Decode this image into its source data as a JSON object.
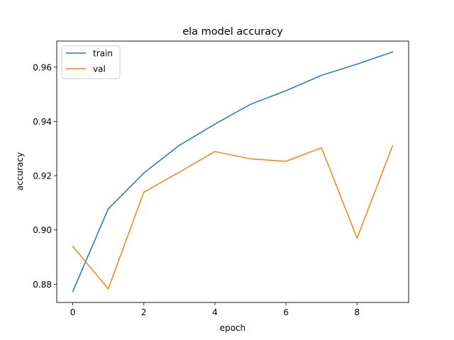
{
  "chart_data": {
    "type": "line",
    "title": "ela model accuracy",
    "xlabel": "epoch",
    "ylabel": "accuracy",
    "x": [
      0,
      1,
      2,
      3,
      4,
      5,
      6,
      7,
      8,
      9
    ],
    "series": [
      {
        "name": "train",
        "color": "#1f77b4",
        "values": [
          0.8773,
          0.9078,
          0.921,
          0.9312,
          0.939,
          0.9463,
          0.9513,
          0.957,
          0.9611,
          0.9656
        ]
      },
      {
        "name": "val",
        "color": "#ff7f0e",
        "values": [
          0.894,
          0.8783,
          0.9139,
          0.9213,
          0.9289,
          0.9262,
          0.9253,
          0.9303,
          0.897,
          0.931
        ]
      }
    ],
    "xlim": [
      -0.45,
      9.45
    ],
    "ylim": [
      0.8733,
      0.9696
    ],
    "xticks": [
      0,
      2,
      4,
      6,
      8
    ],
    "xtick_labels": [
      "0",
      "2",
      "4",
      "6",
      "8"
    ],
    "yticks": [
      0.88,
      0.9,
      0.92,
      0.94,
      0.96
    ],
    "ytick_labels": [
      "0.88",
      "0.90",
      "0.92",
      "0.94",
      "0.96"
    ],
    "grid": false,
    "legend_position": "upper left"
  }
}
